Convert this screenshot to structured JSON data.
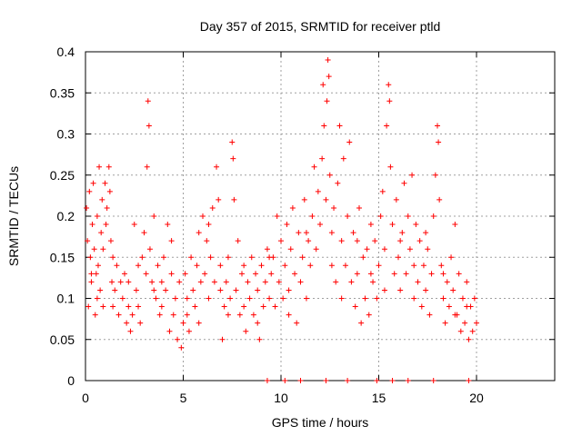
{
  "chart_data": {
    "type": "scatter",
    "title": "Day 357 of 2015, SRMTID for receiver ptld",
    "xlabel": "GPS time / hours",
    "ylabel": "SRMTID / TECUs",
    "xlim": [
      0,
      24
    ],
    "ylim": [
      0,
      0.4
    ],
    "xticks": [
      "0",
      "5",
      "10",
      "15",
      "20"
    ],
    "yticks": [
      "0",
      "0.05",
      "0.1",
      "0.15",
      "0.2",
      "0.25",
      "0.3",
      "0.35",
      "0.4"
    ],
    "grid": true,
    "marker": "+",
    "series": [
      {
        "name": "SRMTID",
        "color": "#ff0000",
        "points": [
          [
            0.05,
            0.21
          ],
          [
            0.1,
            0.17
          ],
          [
            0.15,
            0.09
          ],
          [
            0.2,
            0.23
          ],
          [
            0.25,
            0.15
          ],
          [
            0.3,
            0.12
          ],
          [
            0.35,
            0.19
          ],
          [
            0.4,
            0.24
          ],
          [
            0.45,
            0.16
          ],
          [
            0.5,
            0.08
          ],
          [
            0.55,
            0.13
          ],
          [
            0.6,
            0.2
          ],
          [
            0.65,
            0.14
          ],
          [
            0.7,
            0.26
          ],
          [
            0.75,
            0.11
          ],
          [
            0.8,
            0.18
          ],
          [
            0.85,
            0.22
          ],
          [
            0.9,
            0.16
          ],
          [
            1.0,
            0.24
          ],
          [
            1.05,
            0.19
          ],
          [
            1.1,
            0.21
          ],
          [
            1.2,
            0.26
          ],
          [
            1.25,
            0.23
          ],
          [
            1.3,
            0.17
          ],
          [
            1.35,
            0.12
          ],
          [
            1.4,
            0.09
          ],
          [
            1.5,
            0.11
          ],
          [
            1.6,
            0.14
          ],
          [
            1.7,
            0.08
          ],
          [
            1.8,
            0.12
          ],
          [
            1.9,
            0.1
          ],
          [
            2.0,
            0.13
          ],
          [
            2.1,
            0.07
          ],
          [
            2.2,
            0.09
          ],
          [
            2.3,
            0.06
          ],
          [
            2.4,
            0.08
          ],
          [
            2.5,
            0.19
          ],
          [
            2.6,
            0.11
          ],
          [
            2.7,
            0.09
          ],
          [
            2.8,
            0.07
          ],
          [
            2.9,
            0.15
          ],
          [
            3.0,
            0.18
          ],
          [
            3.1,
            0.13
          ],
          [
            3.15,
            0.26
          ],
          [
            3.2,
            0.34
          ],
          [
            3.25,
            0.31
          ],
          [
            3.3,
            0.16
          ],
          [
            3.4,
            0.12
          ],
          [
            3.5,
            0.2
          ],
          [
            3.6,
            0.1
          ],
          [
            3.7,
            0.14
          ],
          [
            3.8,
            0.08
          ],
          [
            3.9,
            0.12
          ],
          [
            4.0,
            0.15
          ],
          [
            4.1,
            0.11
          ],
          [
            4.2,
            0.19
          ],
          [
            4.3,
            0.06
          ],
          [
            4.4,
            0.13
          ],
          [
            4.5,
            0.08
          ],
          [
            4.6,
            0.1
          ],
          [
            4.7,
            0.05
          ],
          [
            4.8,
            0.12
          ],
          [
            4.9,
            0.04
          ],
          [
            5.0,
            0.07
          ],
          [
            5.1,
            0.13
          ],
          [
            5.2,
            0.08
          ],
          [
            5.3,
            0.06
          ],
          [
            5.4,
            0.15
          ],
          [
            5.5,
            0.11
          ],
          [
            5.6,
            0.09
          ],
          [
            5.7,
            0.14
          ],
          [
            5.8,
            0.18
          ],
          [
            5.9,
            0.12
          ],
          [
            6.0,
            0.2
          ],
          [
            6.1,
            0.13
          ],
          [
            6.2,
            0.17
          ],
          [
            6.3,
            0.1
          ],
          [
            6.4,
            0.15
          ],
          [
            6.5,
            0.21
          ],
          [
            6.6,
            0.12
          ],
          [
            6.7,
            0.26
          ],
          [
            6.8,
            0.22
          ],
          [
            6.9,
            0.14
          ],
          [
            7.0,
            0.05
          ],
          [
            7.1,
            0.09
          ],
          [
            7.2,
            0.12
          ],
          [
            7.3,
            0.15
          ],
          [
            7.4,
            0.1
          ],
          [
            7.5,
            0.29
          ],
          [
            7.55,
            0.27
          ],
          [
            7.6,
            0.22
          ],
          [
            7.7,
            0.11
          ],
          [
            7.8,
            0.17
          ],
          [
            7.9,
            0.08
          ],
          [
            8.0,
            0.13
          ],
          [
            8.1,
            0.09
          ],
          [
            8.2,
            0.06
          ],
          [
            8.3,
            0.12
          ],
          [
            8.4,
            0.1
          ],
          [
            8.5,
            0.15
          ],
          [
            8.6,
            0.08
          ],
          [
            8.7,
            0.13
          ],
          [
            8.8,
            0.11
          ],
          [
            8.9,
            0.05
          ],
          [
            9.0,
            0.14
          ],
          [
            9.1,
            0.09
          ],
          [
            9.2,
            0.12
          ],
          [
            9.3,
            0.16
          ],
          [
            9.4,
            0.1
          ],
          [
            9.5,
            0.13
          ],
          [
            9.6,
            0.15
          ],
          [
            9.7,
            0.09
          ],
          [
            9.8,
            0.2
          ],
          [
            9.9,
            0.12
          ],
          [
            10.0,
            0.17
          ],
          [
            10.1,
            0.1
          ],
          [
            10.2,
            0.14
          ],
          [
            10.3,
            0.19
          ],
          [
            10.4,
            0.11
          ],
          [
            10.5,
            0.16
          ],
          [
            10.6,
            0.21
          ],
          [
            10.7,
            0.13
          ],
          [
            10.8,
            0.07
          ],
          [
            10.9,
            0.18
          ],
          [
            11.0,
            0.12
          ],
          [
            11.1,
            0.15
          ],
          [
            11.2,
            0.22
          ],
          [
            11.3,
            0.1
          ],
          [
            11.4,
            0.17
          ],
          [
            11.5,
            0.14
          ],
          [
            11.6,
            0.2
          ],
          [
            11.7,
            0.26
          ],
          [
            11.8,
            0.16
          ],
          [
            11.9,
            0.23
          ],
          [
            12.0,
            0.19
          ],
          [
            12.1,
            0.27
          ],
          [
            12.15,
            0.36
          ],
          [
            12.2,
            0.31
          ],
          [
            12.3,
            0.22
          ],
          [
            12.35,
            0.34
          ],
          [
            12.4,
            0.39
          ],
          [
            12.45,
            0.37
          ],
          [
            12.5,
            0.25
          ],
          [
            12.6,
            0.18
          ],
          [
            12.7,
            0.21
          ],
          [
            12.8,
            0.12
          ],
          [
            12.9,
            0.24
          ],
          [
            13.0,
            0.31
          ],
          [
            13.1,
            0.17
          ],
          [
            13.2,
            0.27
          ],
          [
            13.3,
            0.14
          ],
          [
            13.4,
            0.2
          ],
          [
            13.5,
            0.29
          ],
          [
            13.6,
            0.12
          ],
          [
            13.7,
            0.18
          ],
          [
            13.8,
            0.09
          ],
          [
            13.9,
            0.13
          ],
          [
            14.0,
            0.21
          ],
          [
            14.1,
            0.07
          ],
          [
            14.2,
            0.15
          ],
          [
            14.3,
            0.1
          ],
          [
            14.4,
            0.16
          ],
          [
            14.5,
            0.08
          ],
          [
            14.6,
            0.19
          ],
          [
            14.7,
            0.12
          ],
          [
            14.8,
            0.17
          ],
          [
            14.9,
            0.1
          ],
          [
            15.0,
            0.14
          ],
          [
            15.1,
            0.2
          ],
          [
            15.2,
            0.23
          ],
          [
            15.3,
            0.16
          ],
          [
            15.4,
            0.31
          ],
          [
            15.5,
            0.36
          ],
          [
            15.55,
            0.34
          ],
          [
            15.6,
            0.26
          ],
          [
            15.7,
            0.19
          ],
          [
            15.8,
            0.13
          ],
          [
            15.9,
            0.22
          ],
          [
            16.0,
            0.15
          ],
          [
            16.1,
            0.11
          ],
          [
            16.2,
            0.18
          ],
          [
            16.3,
            0.24
          ],
          [
            16.4,
            0.13
          ],
          [
            16.5,
            0.2
          ],
          [
            16.6,
            0.16
          ],
          [
            16.7,
            0.25
          ],
          [
            16.8,
            0.14
          ],
          [
            16.9,
            0.19
          ],
          [
            17.0,
            0.12
          ],
          [
            17.1,
            0.17
          ],
          [
            17.2,
            0.09
          ],
          [
            17.3,
            0.14
          ],
          [
            17.4,
            0.11
          ],
          [
            17.5,
            0.16
          ],
          [
            17.6,
            0.08
          ],
          [
            17.7,
            0.13
          ],
          [
            17.8,
            0.2
          ],
          [
            17.9,
            0.25
          ],
          [
            18.0,
            0.31
          ],
          [
            18.05,
            0.29
          ],
          [
            18.1,
            0.22
          ],
          [
            18.2,
            0.14
          ],
          [
            18.3,
            0.1
          ],
          [
            18.4,
            0.07
          ],
          [
            18.5,
            0.12
          ],
          [
            18.6,
            0.09
          ],
          [
            18.7,
            0.15
          ],
          [
            18.8,
            0.11
          ],
          [
            18.9,
            0.19
          ],
          [
            19.0,
            0.08
          ],
          [
            19.1,
            0.13
          ],
          [
            19.2,
            0.06
          ],
          [
            19.3,
            0.1
          ],
          [
            19.4,
            0.07
          ],
          [
            19.5,
            0.12
          ],
          [
            19.6,
            0.05
          ],
          [
            19.7,
            0.09
          ],
          [
            19.8,
            0.06
          ],
          [
            19.9,
            0.1
          ],
          [
            20.0,
            0.07
          ],
          [
            9.3,
            0.0
          ],
          [
            10.2,
            0.0
          ],
          [
            11.0,
            0.0
          ],
          [
            12.3,
            0.0
          ],
          [
            13.4,
            0.0
          ],
          [
            14.9,
            0.0
          ],
          [
            15.7,
            0.0
          ],
          [
            16.5,
            0.0
          ],
          [
            17.8,
            0.0
          ],
          [
            19.6,
            0.0
          ],
          [
            0.3,
            0.13
          ],
          [
            0.6,
            0.1
          ],
          [
            0.9,
            0.09
          ],
          [
            1.4,
            0.15
          ],
          [
            2.2,
            0.12
          ],
          [
            2.7,
            0.14
          ],
          [
            3.5,
            0.11
          ],
          [
            3.9,
            0.09
          ],
          [
            4.4,
            0.17
          ],
          [
            5.2,
            0.1
          ],
          [
            5.8,
            0.07
          ],
          [
            6.3,
            0.19
          ],
          [
            6.9,
            0.11
          ],
          [
            7.3,
            0.08
          ],
          [
            8.1,
            0.14
          ],
          [
            8.8,
            0.07
          ],
          [
            9.4,
            0.15
          ],
          [
            10.4,
            0.08
          ],
          [
            11.3,
            0.18
          ],
          [
            12.6,
            0.14
          ],
          [
            13.1,
            0.1
          ],
          [
            13.9,
            0.17
          ],
          [
            14.6,
            0.13
          ],
          [
            15.3,
            0.11
          ],
          [
            16.1,
            0.17
          ],
          [
            16.8,
            0.1
          ],
          [
            17.4,
            0.18
          ],
          [
            18.3,
            0.13
          ],
          [
            18.9,
            0.08
          ],
          [
            19.5,
            0.09
          ]
        ]
      }
    ]
  }
}
